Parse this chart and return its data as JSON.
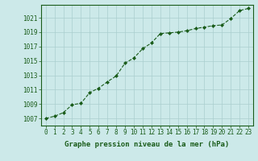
{
  "x": [
    0,
    1,
    2,
    3,
    4,
    5,
    6,
    7,
    8,
    9,
    10,
    11,
    12,
    13,
    14,
    15,
    16,
    17,
    18,
    19,
    20,
    21,
    22,
    23
  ],
  "y": [
    1007.0,
    1007.3,
    1007.8,
    1008.9,
    1009.1,
    1010.6,
    1011.2,
    1012.1,
    1012.9,
    1014.7,
    1015.4,
    1016.7,
    1017.5,
    1018.8,
    1018.9,
    1019.0,
    1019.2,
    1019.5,
    1019.7,
    1019.9,
    1020.0,
    1020.9,
    1022.0,
    1022.3
  ],
  "line_color": "#1a5c1a",
  "marker": "D",
  "marker_size": 2.0,
  "bg_color": "#cce9e9",
  "grid_color_v": "#aacece",
  "grid_color_h": "#aacece",
  "axis_color": "#1a5c1a",
  "xlabel": "Graphe pression niveau de la mer (hPa)",
  "xlabel_color": "#1a5c1a",
  "ylim": [
    1006.0,
    1022.8
  ],
  "xlim": [
    -0.5,
    23.5
  ],
  "yticks": [
    1007,
    1009,
    1011,
    1013,
    1015,
    1017,
    1019,
    1021
  ],
  "xticks": [
    0,
    1,
    2,
    3,
    4,
    5,
    6,
    7,
    8,
    9,
    10,
    11,
    12,
    13,
    14,
    15,
    16,
    17,
    18,
    19,
    20,
    21,
    22,
    23
  ],
  "tick_fontsize": 5.5,
  "label_fontsize": 6.5
}
